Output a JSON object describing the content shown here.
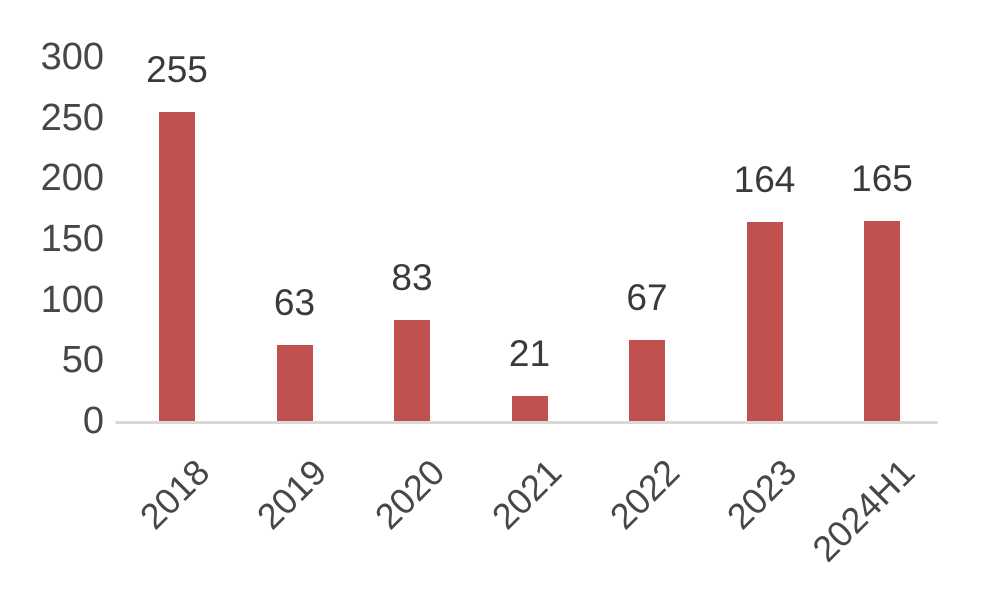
{
  "chart_data": {
    "type": "bar",
    "categories": [
      "2018",
      "2019",
      "2020",
      "2021",
      "2022",
      "2023",
      "2024H1"
    ],
    "values": [
      255,
      63,
      83,
      21,
      67,
      164,
      165
    ],
    "data_labels": [
      "255",
      "63",
      "83",
      "21",
      "67",
      "164",
      "165"
    ],
    "title": "",
    "xlabel": "",
    "ylabel": "",
    "ylim": [
      0,
      300
    ],
    "yticks": [
      0,
      50,
      100,
      150,
      200,
      250,
      300
    ],
    "grid": false,
    "legend": false,
    "x_label_rotation_deg": 45,
    "colors": {
      "bar": "#c0514f",
      "axis_line": "#d9d9d9",
      "tick_text": "#474747",
      "value_text": "#3a3a3a"
    }
  }
}
